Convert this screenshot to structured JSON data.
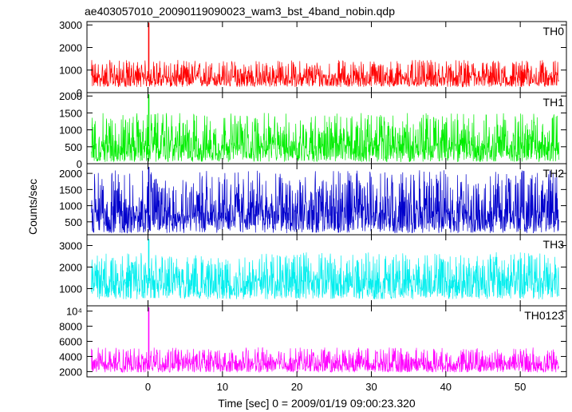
{
  "title": "ae403057010_20090119090023_wam3_bst_4band_nobin.qdp",
  "xlabel": "Time [sec] 0 = 2009/01/19 09:00:23.320",
  "ylabel": "Counts/sec",
  "chart_data": {
    "type": "line",
    "title": "ae403057010_20090119090023_wam3_bst_4band_nobin.qdp",
    "xlabel": "Time [sec] 0 = 2009/01/19 09:00:23.320",
    "ylabel": "Counts/sec",
    "xlim": [
      -8.2,
      56.2
    ],
    "x_ticks": [
      0,
      10,
      20,
      30,
      40,
      50
    ],
    "grid": false,
    "note_shared_x": true,
    "panels": [
      {
        "name": "TH0",
        "color": "#ff0000",
        "ylim": [
          0,
          3150
        ],
        "y_ticks": [
          {
            "v": 0,
            "label": "0"
          },
          {
            "v": 1000,
            "label": "1000"
          },
          {
            "v": 2000,
            "label": "2000"
          },
          {
            "v": 3000,
            "label": "3000"
          }
        ],
        "baseline_mean": 650,
        "noise_low": 250,
        "noise_high": 1450,
        "spike": {
          "x": 0.1,
          "peak": 3100
        }
      },
      {
        "name": "TH1",
        "color": "#00ee00",
        "ylim": [
          0,
          2100
        ],
        "y_ticks": [
          {
            "v": 0,
            "label": "0"
          },
          {
            "v": 500,
            "label": "500"
          },
          {
            "v": 1000,
            "label": "1000"
          },
          {
            "v": 1500,
            "label": "1500"
          },
          {
            "v": 2000,
            "label": "2000"
          }
        ],
        "baseline_mean": 520,
        "noise_low": 50,
        "noise_high": 1500,
        "spike": {
          "x": 0.1,
          "peak": 2050
        }
      },
      {
        "name": "TH2",
        "color": "#0000cc",
        "ylim": [
          100,
          2300
        ],
        "y_ticks": [
          {
            "v": 500,
            "label": "500"
          },
          {
            "v": 1000,
            "label": "1000"
          },
          {
            "v": 1500,
            "label": "1500"
          },
          {
            "v": 2000,
            "label": "2000"
          }
        ],
        "baseline_mean": 780,
        "noise_low": 150,
        "noise_high": 2100,
        "spike": {
          "x": 0.1,
          "peak": 2200
        }
      },
      {
        "name": "TH3",
        "color": "#00eeee",
        "ylim": [
          200,
          3500
        ],
        "y_ticks": [
          {
            "v": 1000,
            "label": "1000"
          },
          {
            "v": 2000,
            "label": "2000"
          },
          {
            "v": 3000,
            "label": "3000"
          }
        ],
        "baseline_mean": 1350,
        "noise_low": 500,
        "noise_high": 2700,
        "spike": {
          "x": 0.1,
          "peak": 3300
        }
      },
      {
        "name": "TH0123",
        "color": "#ff00ff",
        "ylim": [
          1300,
          10700
        ],
        "y_ticks": [
          {
            "v": 2000,
            "label": "2000"
          },
          {
            "v": 4000,
            "label": "4000"
          },
          {
            "v": 6000,
            "label": "6000"
          },
          {
            "v": 8000,
            "label": "8000"
          },
          {
            "v": 10000,
            "label": "10⁴"
          }
        ],
        "baseline_mean": 3050,
        "noise_low": 1900,
        "noise_high": 5200,
        "spike": {
          "x": 0.1,
          "peak": 10500
        }
      }
    ]
  }
}
